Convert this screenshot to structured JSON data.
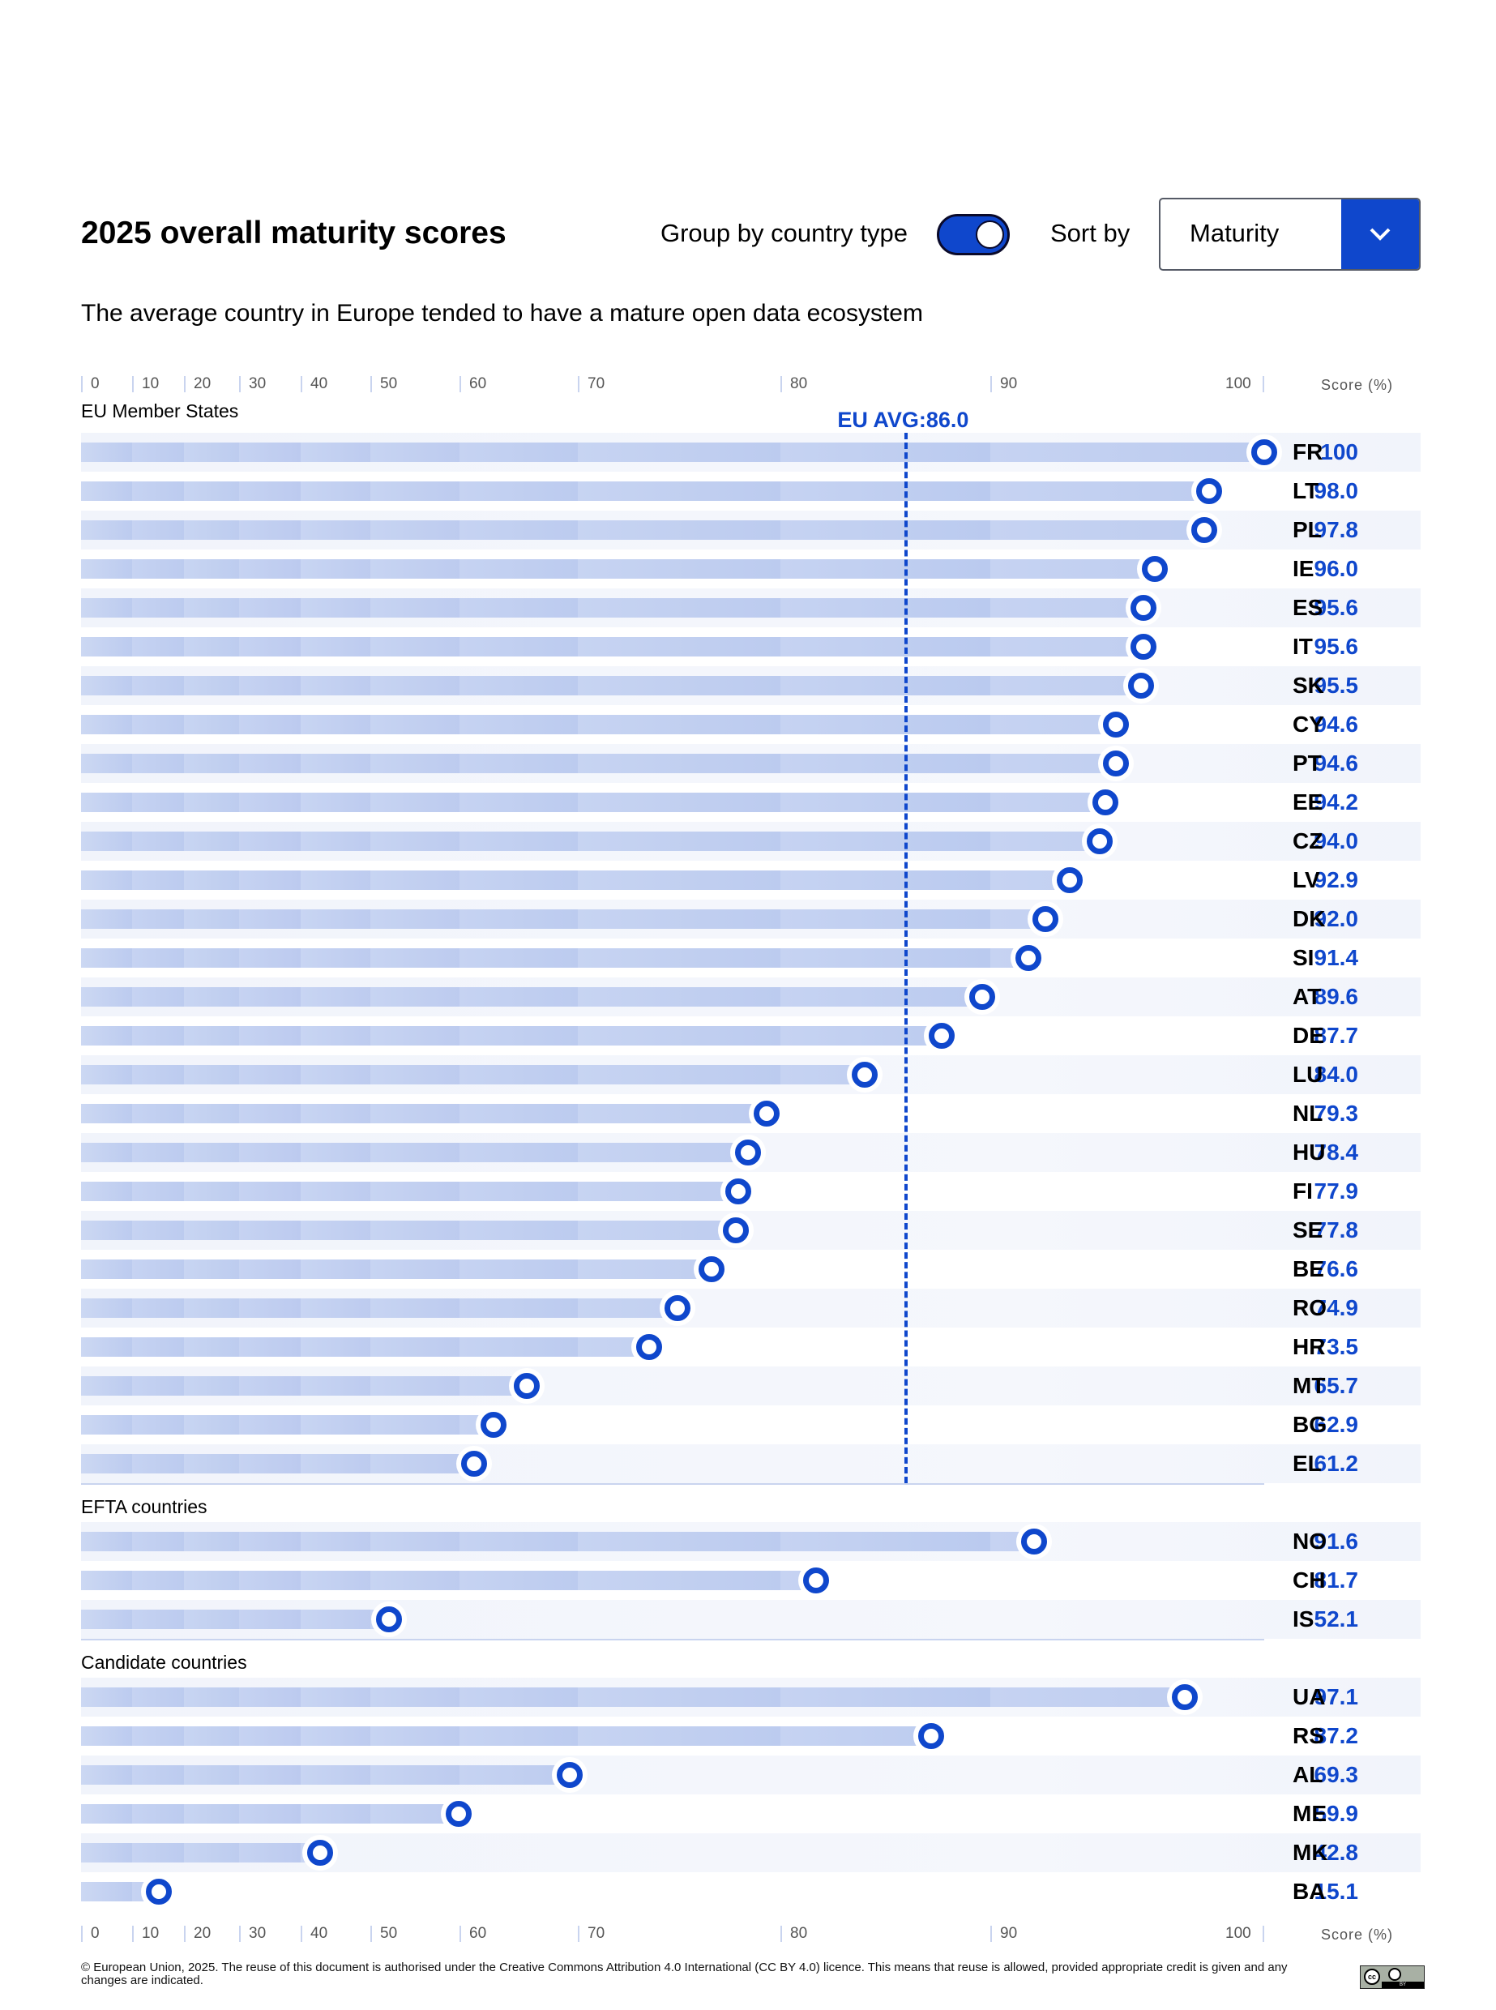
{
  "header": {
    "title": "2025 overall maturity scores",
    "group_toggle_label": "Group by country type",
    "group_toggle_on": true,
    "sort_label": "Sort by",
    "sort_value": "Maturity",
    "subtitle": "The average country in Europe tended to have a mature open data ecosystem"
  },
  "colors": {
    "accent": "#0f47cc",
    "bar": "#c3d0f0",
    "row_shade": "#f2f5fb",
    "separator": "#c9d4ef"
  },
  "footer": {
    "text": "© European Union, 2025. The reuse of this document is authorised under the Creative Commons Attribution 4.0 International (CC BY 4.0) licence. This means that reuse is allowed, provided appropriate credit is given and any changes are indicated.",
    "license_icon": "cc-by-icon"
  },
  "chart_data": {
    "type": "bar",
    "title": "2025 overall maturity scores",
    "subtitle": "The average country in Europe tended to have a mature open data ecosystem",
    "xlabel": "Score (%)",
    "xlim": [
      0,
      100
    ],
    "x_ticks": [
      0,
      10,
      20,
      30,
      40,
      50,
      60,
      70,
      80,
      90,
      100
    ],
    "x_tick_labels": [
      "0",
      "10",
      "20",
      "30",
      "40",
      "50",
      "60",
      "70",
      "80",
      "90",
      "100"
    ],
    "scale": "non-linear (expanded at high values)",
    "grid": false,
    "reference_line": {
      "label": "EU AVG:86.0",
      "value": 86.0,
      "applies_to": "EU Member States"
    },
    "groups": [
      {
        "name": "EU Member States",
        "categories": [
          "FR",
          "LT",
          "PL",
          "IE",
          "ES",
          "IT",
          "SK",
          "CY",
          "PT",
          "EE",
          "CZ",
          "LV",
          "DK",
          "SI",
          "AT",
          "DE",
          "LU",
          "NL",
          "HU",
          "FI",
          "SE",
          "BE",
          "RO",
          "HR",
          "MT",
          "BG",
          "EL"
        ],
        "values": [
          100,
          98.0,
          97.8,
          96.0,
          95.6,
          95.6,
          95.5,
          94.6,
          94.6,
          94.2,
          94.0,
          92.9,
          92.0,
          91.4,
          89.6,
          87.7,
          84.0,
          79.3,
          78.4,
          77.9,
          77.8,
          76.6,
          74.9,
          73.5,
          65.7,
          62.9,
          61.2
        ],
        "labels": [
          "100",
          "98.0",
          "97.8",
          "96.0",
          "95.6",
          "95.6",
          "95.5",
          "94.6",
          "94.6",
          "94.2",
          "94.0",
          "92.9",
          "92.0",
          "91.4",
          "89.6",
          "87.7",
          "84.0",
          "79.3",
          "78.4",
          "77.9",
          "77.8",
          "76.6",
          "74.9",
          "73.5",
          "65.7",
          "62.9",
          "61.2"
        ]
      },
      {
        "name": "EFTA countries",
        "categories": [
          "NO",
          "CH",
          "IS"
        ],
        "values": [
          91.6,
          81.7,
          52.1
        ],
        "labels": [
          "91.6",
          "81.7",
          "52.1"
        ]
      },
      {
        "name": "Candidate countries",
        "categories": [
          "UA",
          "RS",
          "AL",
          "ME",
          "MK",
          "BA"
        ],
        "values": [
          97.1,
          87.2,
          69.3,
          59.9,
          42.8,
          15.1
        ],
        "labels": [
          "97.1",
          "87.2",
          "69.3",
          "59.9",
          "42.8",
          "15.1"
        ]
      }
    ]
  }
}
